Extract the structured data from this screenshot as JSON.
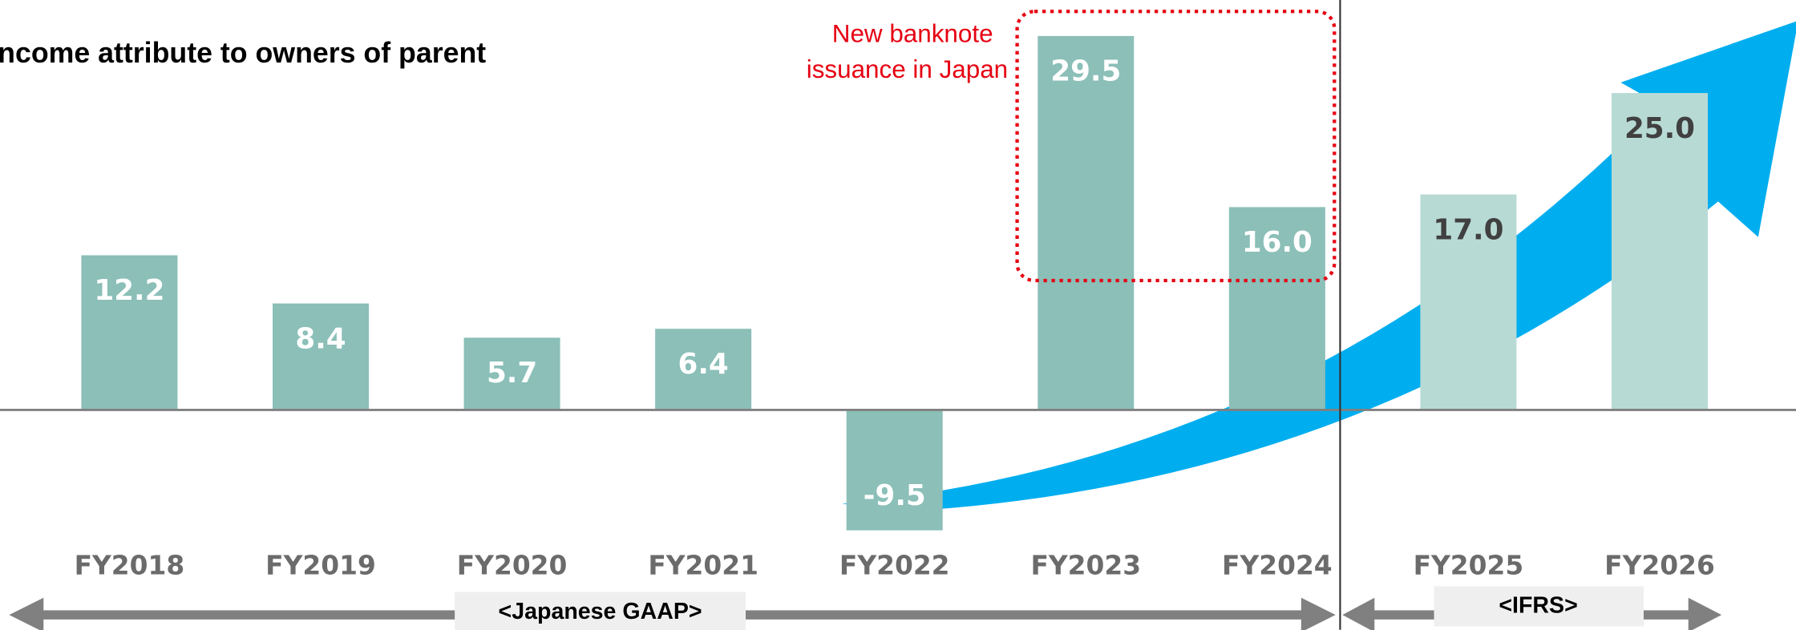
{
  "chart_data": {
    "type": "bar",
    "title": "ncome attribute to owners of parent",
    "categories": [
      "FY2018",
      "FY2019",
      "FY2020",
      "FY2021",
      "FY2022",
      "FY2023",
      "FY2024",
      "FY2025",
      "FY2026"
    ],
    "values": [
      12.2,
      8.4,
      5.7,
      6.4,
      -9.5,
      29.5,
      16.0,
      17.0,
      25.0
    ],
    "value_labels": [
      "12.2",
      "8.4",
      "5.7",
      "6.4",
      "-9.5",
      "29.5",
      "16.0",
      "17.0",
      "25.0"
    ],
    "colors": [
      "#8bbfb8",
      "#8bbfb8",
      "#8bbfb8",
      "#8bbfb8",
      "#8bbfb8",
      "#8bbfb8",
      "#8bbfb8",
      "#b8dad5",
      "#b8dad5"
    ],
    "label_colors": [
      "#ffffff",
      "#ffffff",
      "#ffffff",
      "#ffffff",
      "#ffffff",
      "#ffffff",
      "#ffffff",
      "#404040",
      "#404040"
    ],
    "ylim": [
      -10,
      30
    ],
    "annotation": [
      "New banknote",
      "issuance in Japan"
    ],
    "segments": [
      "<Japanese GAAP>",
      "<IFRS>"
    ]
  }
}
